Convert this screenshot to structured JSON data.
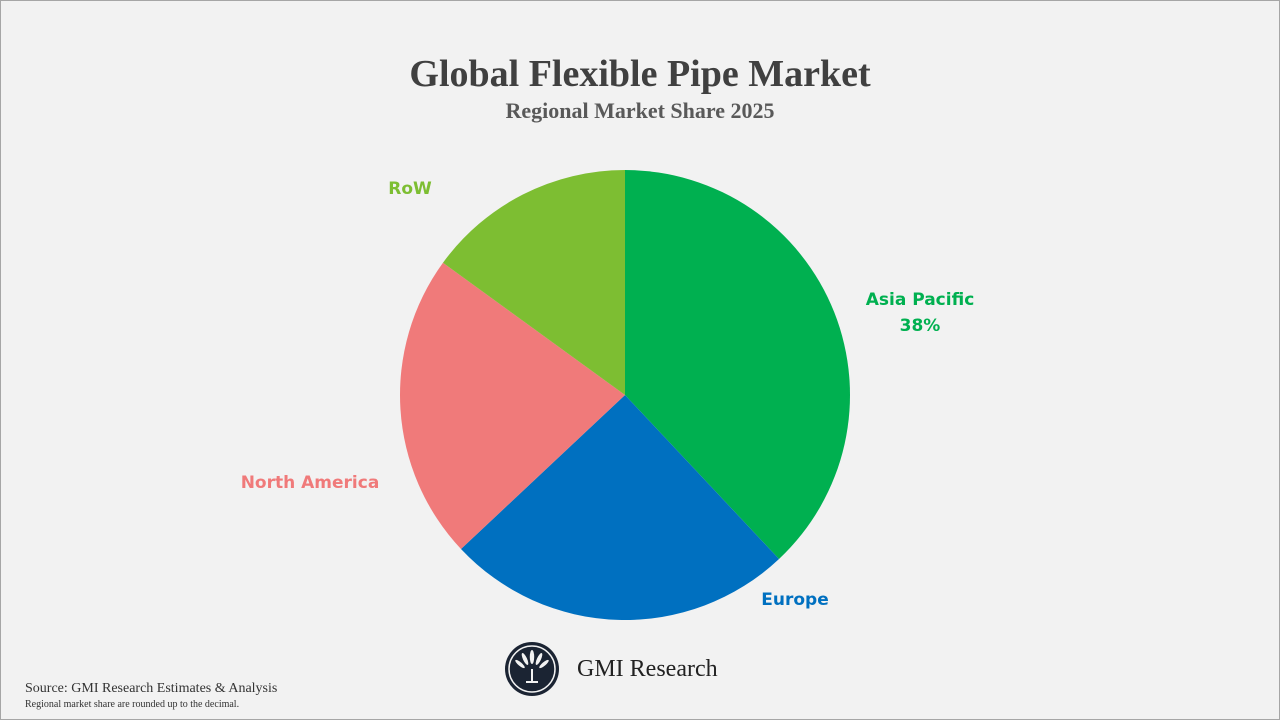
{
  "chart_data": {
    "type": "pie",
    "title": "Global Flexible Pipe Market",
    "subtitle": "Regional Market Share 2025",
    "slices": [
      {
        "name": "Asia Pacific",
        "value": 38,
        "label": "38%",
        "color": "#00B050"
      },
      {
        "name": "Europe",
        "value": 25,
        "label": "",
        "color": "#0070C0"
      },
      {
        "name": "North America",
        "value": 22,
        "label": "",
        "color": "#F07A7A"
      },
      {
        "name": "RoW",
        "value": 15,
        "label": "",
        "color": "#7DBE32"
      }
    ],
    "start_angle": "top",
    "direction": "clockwise"
  },
  "footer": {
    "brand": "GMI Research",
    "logo_text": "GMI Research",
    "source": "Source: GMI Research Estimates & Analysis",
    "note": "Regional market share are rounded up to the decimal."
  }
}
